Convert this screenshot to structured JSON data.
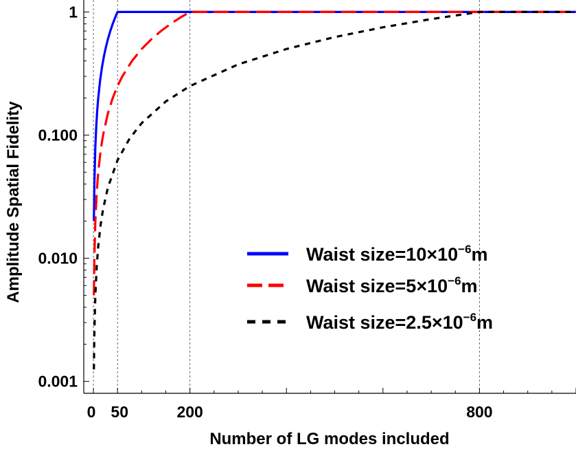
{
  "chart_data": {
    "type": "line",
    "title": "",
    "xlabel": "Number of LG modes included",
    "ylabel": "Amplitude Spatial Fidelity",
    "xlim": [
      -20,
      1000
    ],
    "ylim": [
      0.0008,
      1.25
    ],
    "yscale": "log",
    "x_ticks": [
      {
        "value": 0,
        "label": "0"
      },
      {
        "value": 50,
        "label": "50"
      },
      {
        "value": 200,
        "label": "200"
      },
      {
        "value": 800,
        "label": "800"
      }
    ],
    "y_ticks": [
      {
        "value": 1,
        "label": "1"
      },
      {
        "value": 0.1,
        "label": "0.100"
      },
      {
        "value": 0.01,
        "label": "0.010"
      },
      {
        "value": 0.001,
        "label": "0.001"
      }
    ],
    "vertical_gridlines": [
      0,
      50,
      200,
      800
    ],
    "legend_position": "center-right",
    "series": [
      {
        "name": "Waist size=10×10−6m",
        "legend": {
          "prefix": "Waist size=10×10",
          "exponent": "−6",
          "suffix": "m"
        },
        "color": "#0000ff",
        "dash": "solid",
        "x": [
          1,
          2,
          4,
          6,
          8,
          10,
          14,
          18,
          22,
          26,
          30,
          35,
          40,
          45,
          50,
          200,
          1000
        ],
        "y": [
          0.02,
          0.04,
          0.08,
          0.12,
          0.16,
          0.2,
          0.28,
          0.36,
          0.44,
          0.52,
          0.6,
          0.7,
          0.8,
          0.9,
          1,
          1,
          1
        ]
      },
      {
        "name": "Waist size=5×10−6m",
        "legend": {
          "prefix": "Waist size=5×10",
          "exponent": "−6",
          "suffix": "m"
        },
        "color": "#ff0000",
        "dash": "long",
        "x": [
          1,
          2,
          4,
          7,
          10,
          15,
          20,
          30,
          40,
          50,
          60,
          80,
          100,
          120,
          140,
          160,
          180,
          200,
          1000
        ],
        "y": [
          0.005,
          0.01,
          0.02,
          0.035,
          0.05,
          0.075,
          0.1,
          0.15,
          0.2,
          0.25,
          0.3,
          0.4,
          0.5,
          0.6,
          0.7,
          0.8,
          0.9,
          1,
          1
        ]
      },
      {
        "name": "Waist size=2.5×10−6m",
        "legend": {
          "prefix": "Waist size=2.5×10",
          "exponent": "−6",
          "suffix": "m"
        },
        "color": "#000000",
        "dash": "short",
        "x": [
          1,
          2,
          4,
          7,
          10,
          15,
          20,
          30,
          50,
          75,
          100,
          150,
          200,
          300,
          400,
          500,
          600,
          700,
          800,
          1000
        ],
        "y": [
          0.00125,
          0.0025,
          0.005,
          0.00875,
          0.0125,
          0.01875,
          0.025,
          0.0375,
          0.0625,
          0.09375,
          0.125,
          0.1875,
          0.25,
          0.375,
          0.5,
          0.625,
          0.75,
          0.875,
          1,
          1
        ]
      }
    ]
  }
}
